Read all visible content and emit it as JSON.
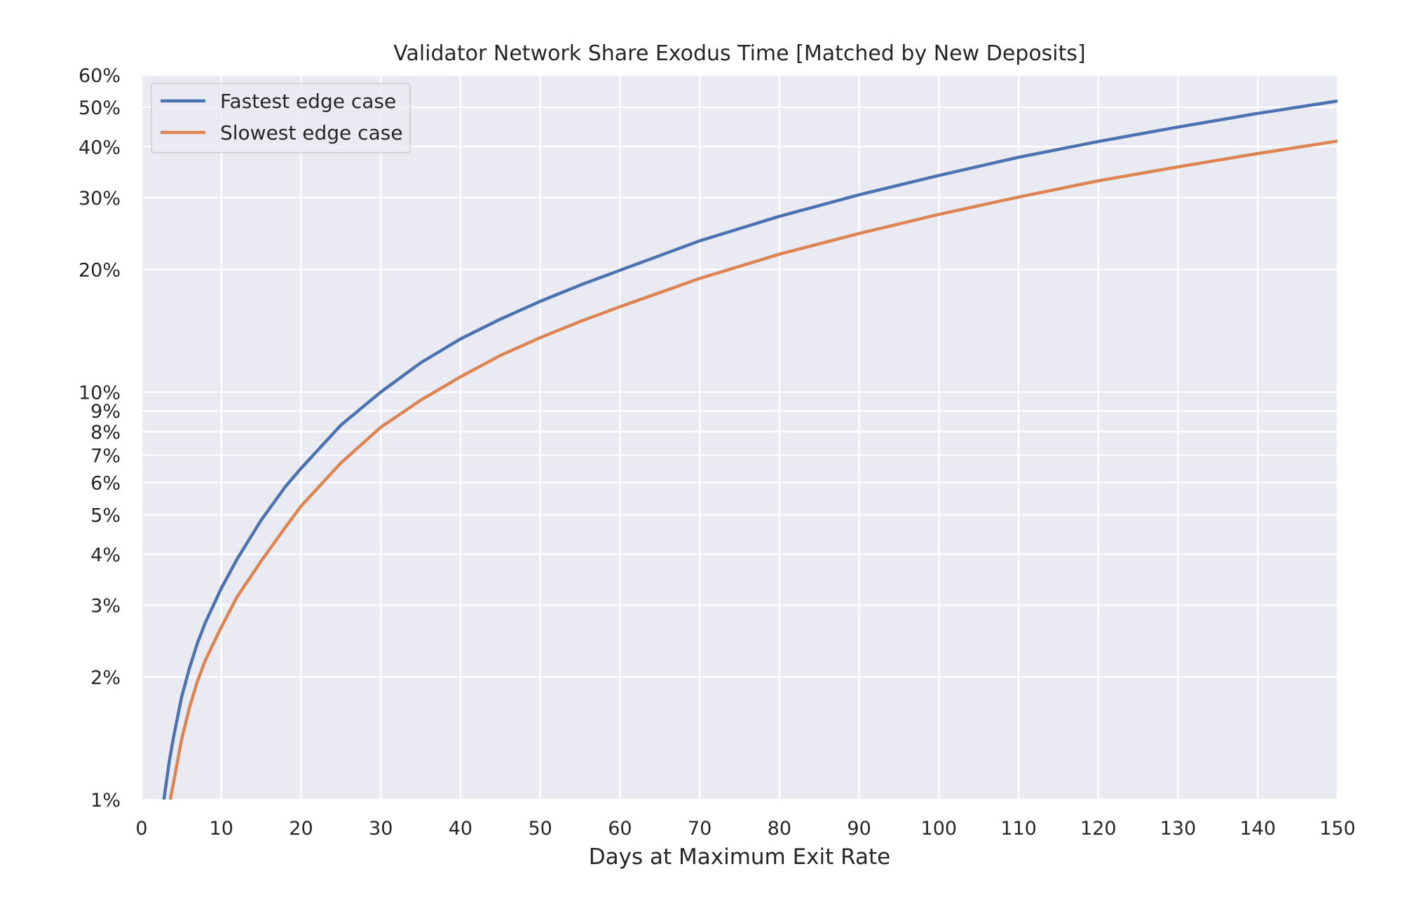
{
  "chart_data": {
    "type": "line",
    "title": "Validator Network Share Exodus Time [Matched by New Deposits]",
    "xlabel": "Days at Maximum Exit Rate",
    "ylabel": "",
    "xlim": [
      0,
      150
    ],
    "ylim": [
      1,
      60
    ],
    "y_scale": "log",
    "grid": true,
    "legend_position": "top-left",
    "x_ticks": [
      {
        "value": 0,
        "label": "0"
      },
      {
        "value": 10,
        "label": "10"
      },
      {
        "value": 20,
        "label": "20"
      },
      {
        "value": 30,
        "label": "30"
      },
      {
        "value": 40,
        "label": "40"
      },
      {
        "value": 50,
        "label": "50"
      },
      {
        "value": 60,
        "label": "60"
      },
      {
        "value": 70,
        "label": "70"
      },
      {
        "value": 80,
        "label": "80"
      },
      {
        "value": 90,
        "label": "90"
      },
      {
        "value": 100,
        "label": "100"
      },
      {
        "value": 110,
        "label": "110"
      },
      {
        "value": 120,
        "label": "120"
      },
      {
        "value": 130,
        "label": "130"
      },
      {
        "value": 140,
        "label": "140"
      },
      {
        "value": 150,
        "label": "150"
      }
    ],
    "y_ticks": [
      {
        "value": 1,
        "label": "1%"
      },
      {
        "value": 2,
        "label": "2%"
      },
      {
        "value": 3,
        "label": "3%"
      },
      {
        "value": 4,
        "label": "4%"
      },
      {
        "value": 5,
        "label": "5%"
      },
      {
        "value": 6,
        "label": "6%"
      },
      {
        "value": 7,
        "label": "7%"
      },
      {
        "value": 8,
        "label": "8%"
      },
      {
        "value": 9,
        "label": "9%"
      },
      {
        "value": 10,
        "label": "10%"
      },
      {
        "value": 20,
        "label": "20%"
      },
      {
        "value": 30,
        "label": "30%"
      },
      {
        "value": 40,
        "label": "40%"
      },
      {
        "value": 50,
        "label": "50%"
      },
      {
        "value": 60,
        "label": "60%"
      }
    ],
    "series": [
      {
        "name": "Fastest edge case",
        "color": "#4c72b0",
        "x": [
          2.8,
          3.5,
          4,
          5,
          6,
          7,
          8,
          10,
          12,
          15,
          18,
          20,
          25,
          30,
          35,
          40,
          45,
          50,
          55,
          60,
          70,
          80,
          90,
          100,
          110,
          120,
          130,
          140,
          150
        ],
        "y": [
          1.0,
          1.25,
          1.42,
          1.78,
          2.1,
          2.42,
          2.72,
          3.3,
          3.9,
          4.85,
          5.85,
          6.5,
          8.3,
          10.0,
          11.8,
          13.5,
          15.1,
          16.7,
          18.3,
          19.9,
          23.5,
          27.0,
          30.5,
          34.0,
          37.7,
          41.2,
          44.7,
          48.3,
          51.8
        ]
      },
      {
        "name": "Slowest edge case",
        "color": "#dd8452",
        "x": [
          3.6,
          4,
          5,
          6,
          7,
          8,
          10,
          12,
          15,
          18,
          20,
          25,
          30,
          35,
          40,
          45,
          50,
          55,
          60,
          70,
          80,
          90,
          100,
          110,
          120,
          130,
          140,
          150
        ],
        "y": [
          1.0,
          1.1,
          1.4,
          1.68,
          1.95,
          2.2,
          2.65,
          3.15,
          3.85,
          4.65,
          5.25,
          6.7,
          8.2,
          9.55,
          10.9,
          12.3,
          13.6,
          14.9,
          16.2,
          19.0,
          21.8,
          24.5,
          27.3,
          30.1,
          33.0,
          35.7,
          38.5,
          41.3
        ]
      }
    ]
  }
}
